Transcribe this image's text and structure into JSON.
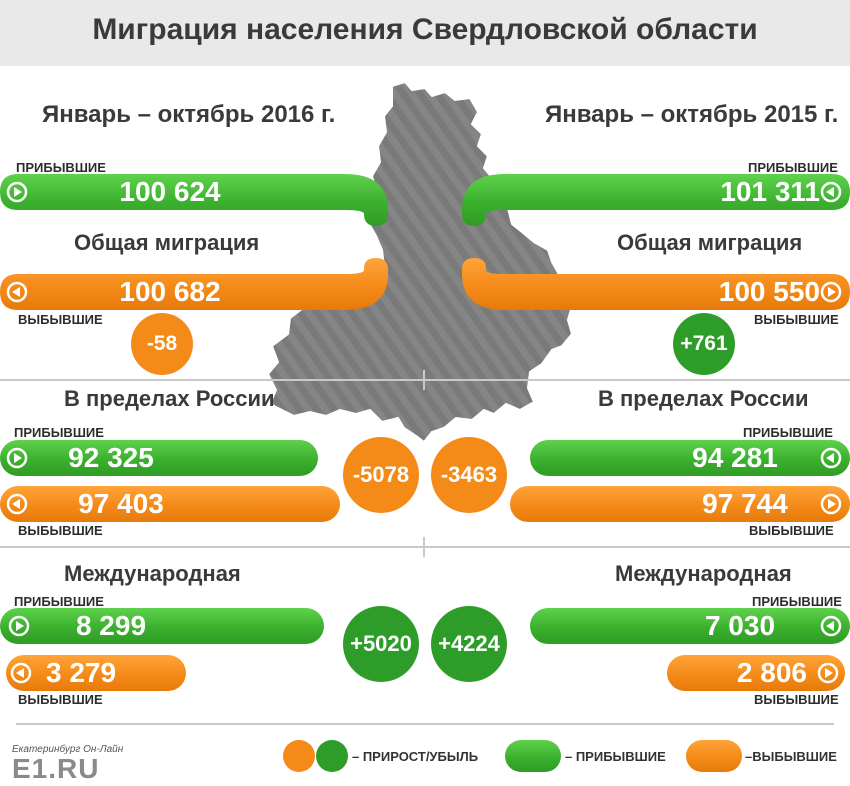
{
  "title": "Миграция населения Свердловской области",
  "period_left": "Январь – октябрь 2016 г.",
  "period_right": "Январь – октябрь 2015 г.",
  "labels": {
    "arrived": "ПРИБЫВШИЕ",
    "departed": "ВЫБЫВШИЕ"
  },
  "sections": {
    "total": "Общая миграция",
    "russia": "В пределах России",
    "international": "Международная"
  },
  "data_2016": {
    "total_arrived": "100 624",
    "total_departed": "100 682",
    "total_balance": "-58",
    "russia_arrived": "92 325",
    "russia_departed": "97 403",
    "russia_balance": "-5078",
    "intl_arrived": "8 299",
    "intl_departed": "3 279",
    "intl_balance": "+5020"
  },
  "data_2015": {
    "total_arrived": "101 311",
    "total_departed": "100 550",
    "total_balance": "+761",
    "russia_arrived": "94 281",
    "russia_departed": "97 744",
    "russia_balance": "-3463",
    "intl_arrived": "7 030",
    "intl_departed": "2 806",
    "intl_balance": "+4224"
  },
  "legend": {
    "growth": "– ПРИРОСТ/УБЫЛЬ",
    "arrived": "– ПРИБЫВШИЕ",
    "departed": "–ВЫБЫВШИЕ"
  },
  "logo": {
    "caption": "Екатеринбург Он-Лайн",
    "brand": "E1.RU"
  },
  "colors": {
    "green": "#3bb02e",
    "dark_green": "#2e9c28",
    "orange": "#f48a18",
    "map": "#7d7d7d"
  }
}
